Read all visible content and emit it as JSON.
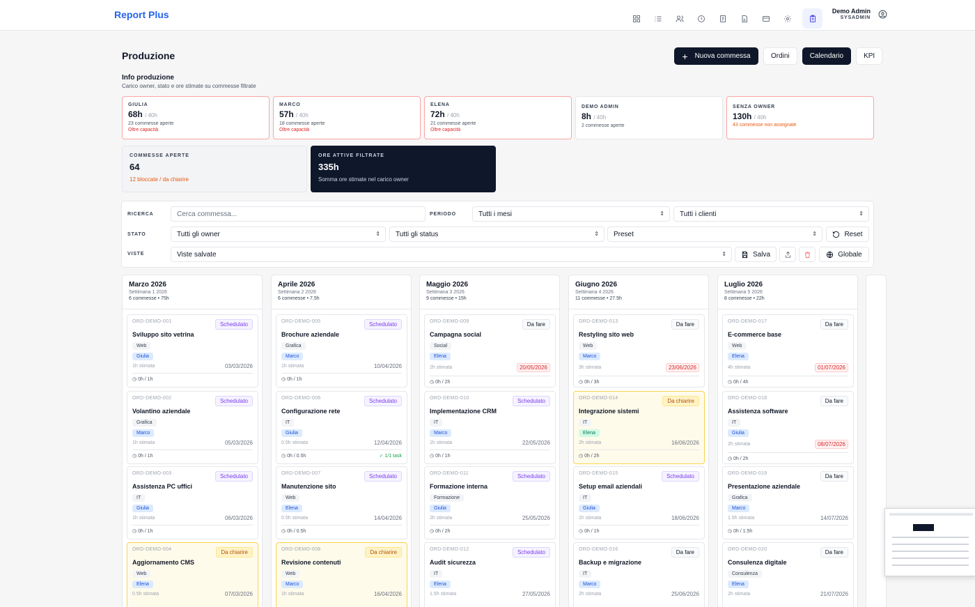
{
  "app": {
    "brand": "Report Plus",
    "user_name": "Demo Admin",
    "user_role": "SYSADMIN"
  },
  "nav_icons": [
    "dashboard-icon",
    "list-icon",
    "users-icon",
    "clock-icon",
    "document-icon",
    "file-icon",
    "card-icon",
    "gear-icon",
    "clipboard-icon"
  ],
  "page": {
    "title": "Produzione",
    "btn_new": "Nuova commessa",
    "btn_new_icon": "+",
    "btn_orders": "Ordini",
    "btn_calendar": "Calendario",
    "btn_kpi": "KPI"
  },
  "info": {
    "title": "Info produzione",
    "subtitle": "Carico owner, stato e ore stimate su commesse filtrate"
  },
  "owners": [
    {
      "name": "GIULIA",
      "hours": "68h",
      "cap": "/ 40h",
      "orders": "23 commesse aperte",
      "over": "Oltre capacità"
    },
    {
      "name": "MARCO",
      "hours": "57h",
      "cap": "/ 40h",
      "orders": "18 commesse aperte",
      "over": "Oltre capacità"
    },
    {
      "name": "ELENA",
      "hours": "72h",
      "cap": "/ 40h",
      "orders": "21 commesse aperte",
      "over": "Oltre capacità"
    },
    {
      "name": "DEMO ADMIN",
      "hours": "8h",
      "cap": "/ 40h",
      "orders": "2 commesse aperte",
      "over": ""
    },
    {
      "name": "SENZA OWNER",
      "hours": "130h",
      "cap": "/ 40h",
      "orders": "",
      "over": "43 commesse non assegnate"
    }
  ],
  "stats": {
    "open": {
      "label": "COMMESSE APERTE",
      "value": "64",
      "sub": "12 bloccate / da chiarire"
    },
    "hours": {
      "label": "ORE ATTIVE FILTRATE",
      "value": "335h",
      "sub": "Somma ore stimate nel carico owner"
    }
  },
  "filters": {
    "search_label": "RICERCA",
    "search_placeholder": "Cerca commessa...",
    "period_label": "PERIODO",
    "period": "Tutti i mesi",
    "clients": "Tutti i clienti",
    "state_label": "STATO",
    "owners": "Tutti gli owner",
    "status": "Tutti gli status",
    "preset": "Preset",
    "reset": "Reset",
    "views_label": "VISTE",
    "views": "Viste salvate",
    "save": "Salva",
    "global": "Globale"
  },
  "columns": [
    {
      "month": "Marzo 2026",
      "week": "Settimana 1 2026",
      "count": "6 commesse • 75h",
      "cards": [
        {
          "code": "ORD-DEMO-001",
          "status": "Schedulato",
          "st": "sch",
          "title": "Sviluppo sito vetrina",
          "tag": "Web",
          "owner": "Giulia",
          "est": "1h stimata",
          "date": "03/03/2026",
          "late": false,
          "prog": "0h / 1h",
          "task": ""
        },
        {
          "code": "ORD-DEMO-002",
          "status": "Schedulato",
          "st": "sch",
          "title": "Volantino aziendale",
          "tag": "Grafica",
          "owner": "Marco",
          "est": "1h stimata",
          "date": "05/03/2026",
          "late": false,
          "prog": "0h / 1h",
          "task": ""
        },
        {
          "code": "ORD-DEMO-003",
          "status": "Schedulato",
          "st": "sch",
          "title": "Assistenza PC uffici",
          "tag": "IT",
          "owner": "Giulia",
          "est": "1h stimata",
          "date": "06/03/2026",
          "late": false,
          "prog": "0h / 1h",
          "task": ""
        },
        {
          "code": "ORD-DEMO-004",
          "status": "Da chiarire",
          "st": "dac",
          "title": "Aggiornamento CMS",
          "tag": "Web",
          "owner": "Elena",
          "est": "0.5h stimata",
          "date": "07/03/2026",
          "late": false,
          "prog": "",
          "task": ""
        }
      ]
    },
    {
      "month": "Aprile 2026",
      "week": "Settimana 2 2026",
      "count": "6 commesse • 7.5h",
      "cards": [
        {
          "code": "ORD-DEMO-005",
          "status": "Schedulato",
          "st": "sch",
          "title": "Brochure aziendale",
          "tag": "Grafica",
          "owner": "Marco",
          "est": "1h stimata",
          "date": "10/04/2026",
          "late": false,
          "prog": "0h / 1h",
          "task": ""
        },
        {
          "code": "ORD-DEMO-006",
          "status": "Schedulato",
          "st": "sch",
          "title": "Configurazione rete",
          "tag": "IT",
          "owner": "Giulia",
          "est": "0.5h stimata",
          "date": "12/04/2026",
          "late": false,
          "prog": "0h / 0.5h",
          "task": "✓ 1/1 task"
        },
        {
          "code": "ORD-DEMO-007",
          "status": "Schedulato",
          "st": "sch",
          "title": "Manutenzione sito",
          "tag": "Web",
          "owner": "Elena",
          "est": "0.5h stimata",
          "date": "14/04/2026",
          "late": false,
          "prog": "0h / 0.5h",
          "task": ""
        },
        {
          "code": "ORD-DEMO-008",
          "status": "Da chiarire",
          "st": "dac",
          "title": "Revisione contenuti",
          "tag": "Web",
          "owner": "Marco",
          "est": "1h stimata",
          "date": "16/04/2026",
          "late": false,
          "prog": "",
          "task": ""
        }
      ]
    },
    {
      "month": "Maggio 2026",
      "week": "Settimana 3 2026",
      "count": "9 commesse • 15h",
      "cards": [
        {
          "code": "ORD-DEMO-009",
          "status": "Da fare",
          "st": "daf",
          "title": "Campagna social",
          "tag": "Social",
          "owner": "Elena",
          "est": "2h stimata",
          "date": "20/05/2026",
          "late": true,
          "prog": "0h / 2h",
          "task": ""
        },
        {
          "code": "ORD-DEMO-010",
          "status": "Schedulato",
          "st": "sch",
          "title": "Implementazione CRM",
          "tag": "IT",
          "owner": "Marco",
          "est": "1h stimata",
          "date": "22/05/2026",
          "late": false,
          "prog": "0h / 1h",
          "task": ""
        },
        {
          "code": "ORD-DEMO-011",
          "status": "Schedulato",
          "st": "sch",
          "title": "Formazione interna",
          "tag": "Formazione",
          "owner": "Giulia",
          "est": "2h stimata",
          "date": "25/05/2026",
          "late": false,
          "prog": "0h / 2h",
          "task": ""
        },
        {
          "code": "ORD-DEMO-012",
          "status": "Schedulato",
          "st": "sch",
          "title": "Audit sicurezza",
          "tag": "IT",
          "owner": "Elena",
          "est": "1.5h stimata",
          "date": "27/05/2026",
          "late": false,
          "prog": "",
          "task": ""
        }
      ]
    },
    {
      "month": "Giugno 2026",
      "week": "Settimana 4 2026",
      "count": "11 commesse • 27.5h",
      "cards": [
        {
          "code": "ORD-DEMO-013",
          "status": "Da fare",
          "st": "daf",
          "title": "Restyling sito web",
          "tag": "Web",
          "owner": "Marco",
          "est": "3h stimata",
          "date": "23/06/2026",
          "late": true,
          "prog": "0h / 3h",
          "task": ""
        },
        {
          "code": "ORD-DEMO-014",
          "status": "Da chiarire",
          "st": "dac",
          "title": "Integrazione sistemi",
          "tag": "IT",
          "owner": "Elena",
          "est": "2h stimata",
          "date": "16/06/2026",
          "late": false,
          "prog": "0h / 2h",
          "task": "",
          "hl": true
        },
        {
          "code": "ORD-DEMO-015",
          "status": "Schedulato",
          "st": "sch",
          "title": "Setup email aziendali",
          "tag": "IT",
          "owner": "Giulia",
          "est": "1h stimata",
          "date": "18/06/2026",
          "late": false,
          "prog": "0h / 1h",
          "task": ""
        },
        {
          "code": "ORD-DEMO-016",
          "status": "Da fare",
          "st": "daf",
          "title": "Backup e migrazione",
          "tag": "IT",
          "owner": "Marco",
          "est": "2h stimata",
          "date": "25/06/2026",
          "late": false,
          "prog": "",
          "task": ""
        }
      ]
    },
    {
      "month": "Luglio 2026",
      "week": "Settimana 5 2026",
      "count": "8 commesse • 22h",
      "cards": [
        {
          "code": "ORD-DEMO-017",
          "status": "Da fare",
          "st": "daf",
          "title": "E-commerce base",
          "tag": "Web",
          "owner": "Elena",
          "est": "4h stimata",
          "date": "01/07/2026",
          "late": true,
          "prog": "0h / 4h",
          "task": ""
        },
        {
          "code": "ORD-DEMO-018",
          "status": "Da fare",
          "st": "daf",
          "title": "Assistenza software",
          "tag": "IT",
          "owner": "Giulia",
          "est": "2h stimata",
          "date": "08/07/2026",
          "late": true,
          "prog": "0h / 2h",
          "task": ""
        },
        {
          "code": "ORD-DEMO-019",
          "status": "Da fare",
          "st": "daf",
          "title": "Presentazione aziendale",
          "tag": "Grafica",
          "owner": "Marco",
          "est": "1.5h stimata",
          "date": "14/07/2026",
          "late": false,
          "prog": "0h / 1.5h",
          "task": ""
        },
        {
          "code": "ORD-DEMO-020",
          "status": "Da fare",
          "st": "daf",
          "title": "Consulenza digitale",
          "tag": "Consulenza",
          "owner": "Elena",
          "est": "2h stimata",
          "date": "21/07/2026",
          "late": false,
          "prog": "",
          "task": ""
        }
      ]
    }
  ]
}
